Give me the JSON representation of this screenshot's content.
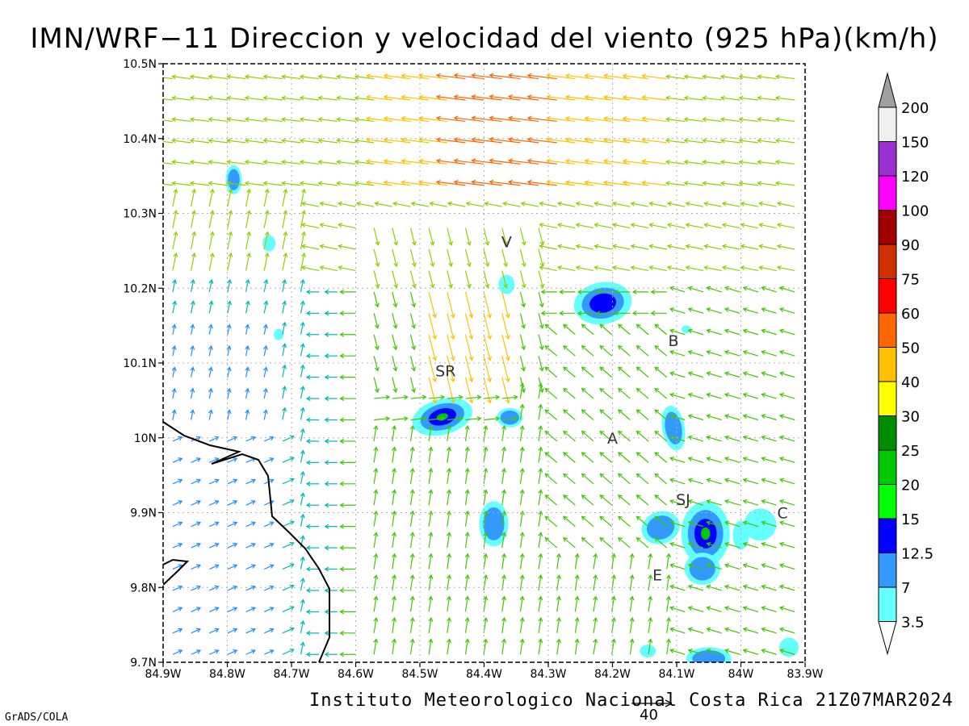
{
  "title": "IMN/WRF−11 Direccion y velocidad del viento (925 hPa)(km/h)",
  "footer": "Instituto Meteorologico Nacional Costa Rica 21Z07MAR2024",
  "credit": "GrADS/COLA",
  "reference_vector": {
    "label": "40"
  },
  "axes": {
    "lat_ticks": [
      "10.5N",
      "10.4N",
      "10.3N",
      "10.2N",
      "10.1N",
      "10N",
      "9.9N",
      "9.8N",
      "9.7N"
    ],
    "lon_ticks": [
      "84.9W",
      "84.8W",
      "84.7W",
      "84.6W",
      "84.5W",
      "84.4W",
      "84.3W",
      "84.2W",
      "84.1W",
      "84W",
      "83.9W"
    ],
    "lat_range": [
      9.7,
      10.5
    ],
    "lon_range": [
      -84.9,
      -83.9
    ]
  },
  "places": [
    {
      "label": "V",
      "lon": -84.365,
      "lat": 10.262
    },
    {
      "label": "SR",
      "lon": -84.46,
      "lat": 10.09
    },
    {
      "label": "B",
      "lon": -84.105,
      "lat": 10.13
    },
    {
      "label": "A",
      "lon": -84.2,
      "lat": 10.0
    },
    {
      "label": "SJ",
      "lon": -84.09,
      "lat": 9.918
    },
    {
      "label": "C",
      "lon": -83.935,
      "lat": 9.9
    },
    {
      "label": "E",
      "lon": -84.13,
      "lat": 9.817
    }
  ],
  "legend": {
    "labels": [
      "200",
      "150",
      "120",
      "100",
      "90",
      "75",
      "60",
      "50",
      "40",
      "30",
      "25",
      "20",
      "15",
      "12.5",
      "7",
      "3.5"
    ],
    "colors": [
      "#a0a0a0",
      "#f0f0f0",
      "#9b30d0",
      "#ff00ff",
      "#a00000",
      "#d03000",
      "#ff0000",
      "#ff6600",
      "#ffc000",
      "#ffff00",
      "#008c00",
      "#00c800",
      "#00ff00",
      "#0000ff",
      "#3399ff",
      "#66ffff"
    ]
  },
  "colors": {
    "coast": "#000000",
    "grid": "#b0b0b0",
    "shade_light": "#66ffff",
    "shade_mid": "#3399ff",
    "shade_dark": "#0000ff",
    "shade_max": "#00c800"
  }
}
